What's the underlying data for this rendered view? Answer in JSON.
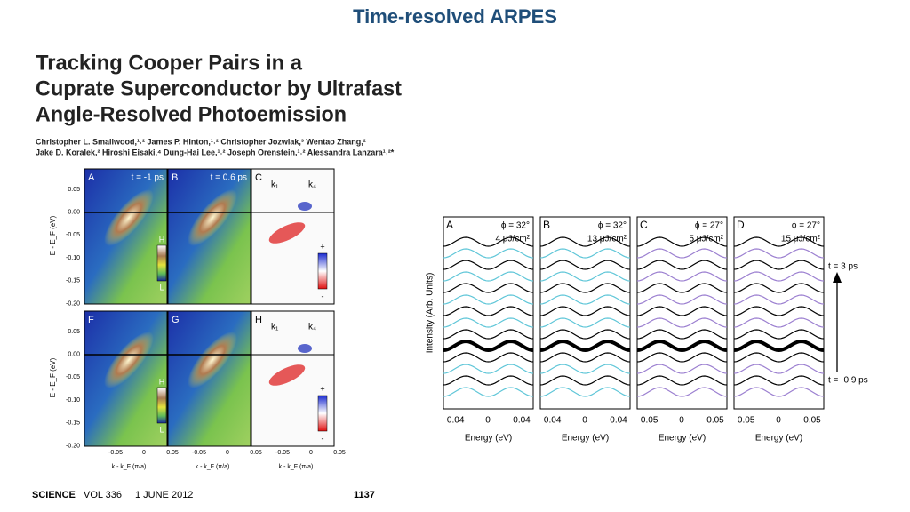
{
  "slide_title": "Time-resolved ARPES",
  "paper": {
    "title_lines": [
      "Tracking Cooper Pairs in a",
      "Cuprate Superconductor by Ultrafast",
      "Angle-Resolved Photoemission"
    ],
    "author_lines": [
      "Christopher L. Smallwood,¹˒² James P. Hinton,¹˒² Christopher Jozwiak,³ Wentao Zhang,²",
      "Jake D. Koralek,² Hiroshi Eisaki,⁴ Dung-Hai Lee,¹˒² Joseph Orenstein,¹˒² Alessandra Lanzara¹˒²*"
    ]
  },
  "left_figure": {
    "panels": [
      {
        "letter": "A",
        "label": "t = -1 ps"
      },
      {
        "letter": "B",
        "label": "t = 0.6 ps"
      },
      {
        "letter": "C",
        "k_labels": [
          "k₁",
          "k₄"
        ]
      },
      {
        "letter": "F"
      },
      {
        "letter": "G"
      },
      {
        "letter": "H",
        "k_labels": [
          "k₁",
          "k₄"
        ]
      }
    ],
    "y_axis_label": "E - E_F (eV)",
    "y_ticks": [
      "0.05",
      "0.00",
      "-0.05",
      "-0.10",
      "-0.15",
      "-0.20"
    ],
    "x_ticks": [
      "-0.05",
      "0",
      "0.05"
    ],
    "x_axis_label": "k - k_F (π/a)",
    "colorbar_labels": [
      "H",
      "L"
    ],
    "diff_colorbar_labels": [
      "+",
      "-"
    ]
  },
  "right_figure": {
    "panels": [
      {
        "letter": "A",
        "phi": "ϕ = 32°",
        "fluence": "4 μJ/cm²",
        "x_ticks": [
          "-0.04",
          "0",
          "0.04"
        ]
      },
      {
        "letter": "B",
        "phi": "ϕ = 32°",
        "fluence": "13 μJ/cm²",
        "x_ticks": [
          "-0.04",
          "0",
          "0.04"
        ]
      },
      {
        "letter": "C",
        "phi": "ϕ = 27°",
        "fluence": "5 μJ/cm²",
        "x_ticks": [
          "-0.05",
          "0",
          "0.05"
        ]
      },
      {
        "letter": "D",
        "phi": "ϕ = 27°",
        "fluence": "15 μJ/cm²",
        "x_ticks": [
          "-0.05",
          "0",
          "0.05"
        ]
      }
    ],
    "y_axis_label": "Intensity (Arb. Units)",
    "x_axis_label": "Energy (eV)",
    "time_top": "t = 3 ps",
    "time_bottom": "t = -0.9 ps"
  },
  "footer": {
    "journal": "SCIENCE",
    "volume": "VOL 336",
    "date": "1 JUNE 2012",
    "page": "1137"
  }
}
